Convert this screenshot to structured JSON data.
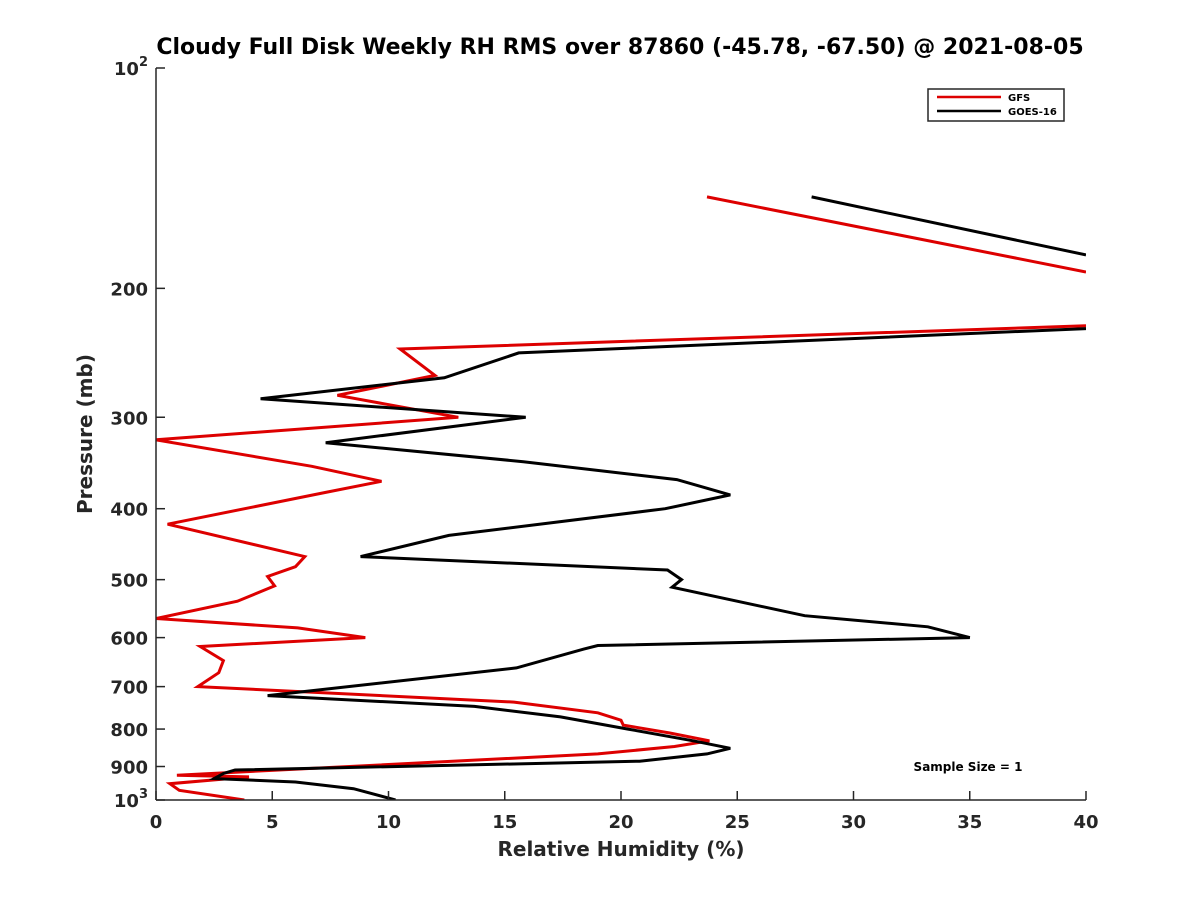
{
  "chart_data": {
    "type": "line",
    "title": "Cloudy Full Disk Weekly RH RMS over 87860 (-45.78, -67.50) @ 2021-08-05",
    "xlabel": "Relative Humidity (%)",
    "ylabel": "Pressure (mb)",
    "xlim": [
      0,
      40
    ],
    "ylim": [
      100,
      1000
    ],
    "y_scale": "log",
    "y_reversed": true,
    "x_ticks": [
      0,
      5,
      10,
      15,
      20,
      25,
      30,
      35,
      40
    ],
    "y_ticks": [
      {
        "value": 100,
        "base": "10",
        "exp": "2"
      },
      {
        "value": 200,
        "label": "200"
      },
      {
        "value": 300,
        "label": "300"
      },
      {
        "value": 400,
        "label": "400"
      },
      {
        "value": 500,
        "label": "500"
      },
      {
        "value": 600,
        "label": "600"
      },
      {
        "value": 700,
        "label": "700"
      },
      {
        "value": 800,
        "label": "800"
      },
      {
        "value": 900,
        "label": "900"
      },
      {
        "value": 1000,
        "base": "10",
        "exp": "3"
      }
    ],
    "grid": false,
    "legend_position": "top-right",
    "annotation": "Sample Size = 1",
    "series": [
      {
        "name": "GFS",
        "color": "#dd0000",
        "segments": [
          [
            [
              23.7,
              150
            ],
            [
              40,
              190
            ]
          ],
          [
            [
              40,
              225
            ],
            [
              10.5,
              242
            ],
            [
              12.0,
              263
            ],
            [
              7.8,
              280
            ],
            [
              13.0,
              300
            ],
            [
              0,
              322
            ],
            [
              6.7,
              350
            ],
            [
              9.7,
              367
            ],
            [
              7.3,
              380
            ],
            [
              0.5,
              420
            ],
            [
              6.4,
              465
            ],
            [
              6.0,
              480
            ],
            [
              4.8,
              495
            ],
            [
              5.1,
              510
            ],
            [
              3.5,
              535
            ],
            [
              0,
              565
            ],
            [
              6.1,
              582
            ],
            [
              9.0,
              600
            ],
            [
              1.9,
              617
            ],
            [
              2.9,
              645
            ],
            [
              2.7,
              670
            ],
            [
              1.8,
              700
            ],
            [
              15.4,
              735
            ],
            [
              19.0,
              760
            ],
            [
              20.0,
              778
            ],
            [
              20.1,
              790
            ],
            [
              22.1,
              810
            ],
            [
              23.8,
              830
            ],
            [
              22.3,
              845
            ],
            [
              19.0,
              865
            ],
            [
              0.9,
              925
            ],
            [
              4.0,
              930
            ],
            [
              0.6,
              950
            ],
            [
              1.0,
              970
            ],
            [
              3.8,
              1000
            ]
          ]
        ]
      },
      {
        "name": "GOES-16",
        "color": "#000000",
        "segments": [
          [
            [
              28.2,
              150
            ],
            [
              40,
              180
            ]
          ],
          [
            [
              40,
              227
            ],
            [
              15.6,
              245
            ],
            [
              12.4,
              265
            ],
            [
              4.5,
              283
            ],
            [
              15.9,
              300
            ],
            [
              7.3,
              325
            ],
            [
              15.8,
              345
            ],
            [
              22.4,
              365
            ],
            [
              24.7,
              383
            ],
            [
              21.9,
              400
            ],
            [
              12.6,
              435
            ],
            [
              8.8,
              465
            ],
            [
              22.0,
              485
            ],
            [
              22.6,
              500
            ],
            [
              22.2,
              512
            ],
            [
              27.9,
              560
            ],
            [
              33.2,
              580
            ],
            [
              35.0,
              600
            ],
            [
              19.0,
              615
            ],
            [
              18.4,
              622
            ],
            [
              15.5,
              660
            ],
            [
              4.8,
              720
            ],
            [
              13.7,
              745
            ],
            [
              17.4,
              770
            ],
            [
              20.3,
              800
            ],
            [
              23.1,
              830
            ],
            [
              24.7,
              850
            ],
            [
              23.7,
              865
            ],
            [
              20.8,
              885
            ],
            [
              3.4,
              910
            ],
            [
              2.9,
              920
            ],
            [
              2.5,
              935
            ],
            [
              6.0,
              945
            ],
            [
              8.5,
              965
            ],
            [
              10.3,
              1000
            ]
          ]
        ]
      }
    ]
  }
}
